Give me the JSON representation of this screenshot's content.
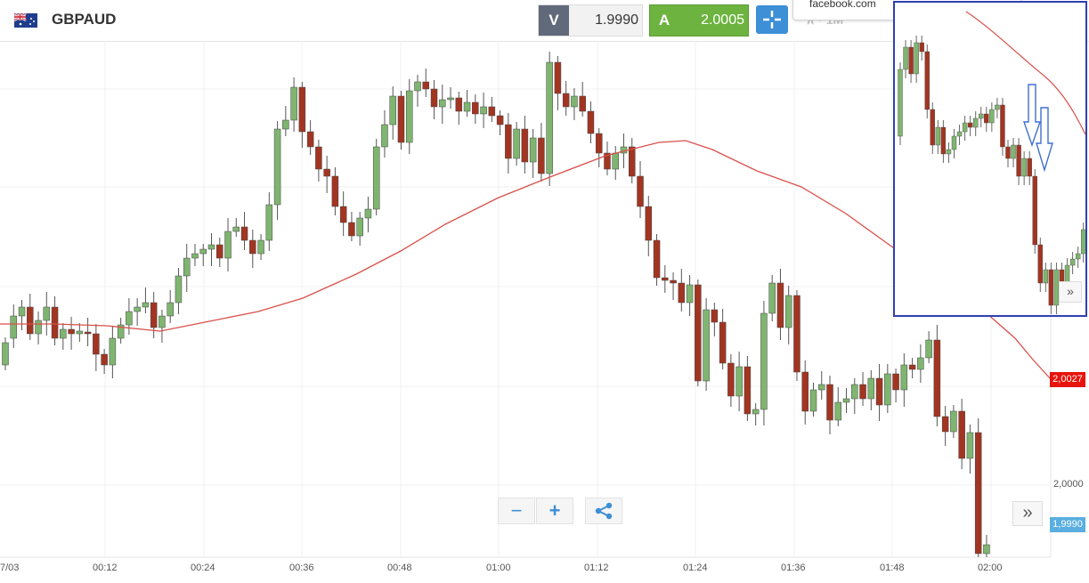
{
  "header": {
    "symbol": "GBPAUD",
    "flag_icon": "uk-australia-flag-icon",
    "sell": {
      "label": "V",
      "price": "1.9990"
    },
    "buy": {
      "label": "A",
      "price": "2.0005"
    },
    "crosshair_icon": "crosshair-icon",
    "toolbar_ghost": "∧ ·   1M"
  },
  "tooltip": {
    "text": "facebook.com"
  },
  "axis": {
    "price_label": "2,0000",
    "last_price_tag": "2,0027",
    "bid_price_tag": "1,9990",
    "time_labels": [
      "7/03",
      "00:12",
      "00:24",
      "00:36",
      "00:48",
      "01:00",
      "01:12",
      "01:24",
      "01:36",
      "01:48",
      "02:00"
    ]
  },
  "controls": {
    "zoom_out": "−",
    "zoom_in": "+",
    "share_icon": "share-icon",
    "scroll_end": "»"
  },
  "colors": {
    "up_candle": "#7fb570",
    "down_candle": "#a23522",
    "moving_average": "#d9504a",
    "buy_green": "#6db33f",
    "sell_gray": "#616a7a",
    "crosshair_blue": "#3d8fd6",
    "last_price_red": "#e8140c",
    "bid_price_blue": "#5aaee0",
    "inset_border": "#3040b0"
  },
  "chart_data": {
    "type": "candlestick",
    "symbol": "GBPAUD",
    "price_labels": [
      "2,0000"
    ],
    "time_labels": [
      "7/03",
      "00:12",
      "00:24",
      "00:36",
      "00:48",
      "01:00",
      "01:12",
      "01:24",
      "01:36",
      "01:48",
      "02:00"
    ],
    "current_price": "2,0027",
    "bid": "1,9990",
    "grid": true,
    "annotations": [
      "down-arrows-in-inset"
    ]
  }
}
